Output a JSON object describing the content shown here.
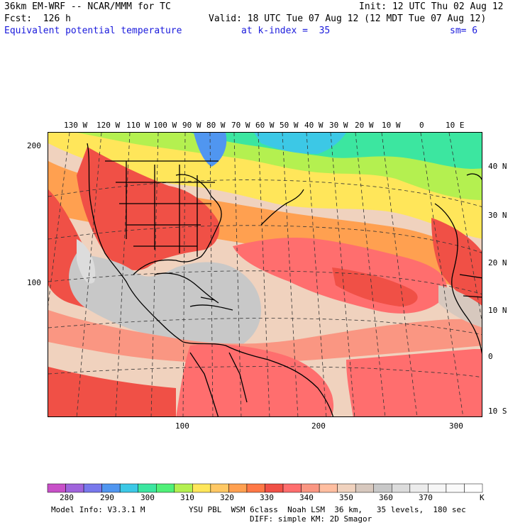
{
  "header": {
    "line1_left": "36km EM-WRF -- NCAR/MMM for TC",
    "line1_right": "Init: 12 UTC Thu 02 Aug 12",
    "line2_left": "Fcst:  126 h",
    "line2_right": "Valid: 18 UTC Tue 07 Aug 12 (12 MDT Tue 07 Aug 12)",
    "line3_field": "Equivalent potential temperature",
    "line3_level": "at k-index =  35",
    "line3_sm": "sm= 6"
  },
  "map": {
    "top_lon_labels": [
      "130 W",
      "120 W",
      "110 W",
      "100 W",
      "90 W",
      "80 W",
      "70 W",
      "60 W",
      "50 W",
      "40 W",
      "30 W",
      "20 W",
      "10 W",
      "0",
      "10 E"
    ],
    "right_lat_labels": [
      "40 N",
      "30 N",
      "20 N",
      "10 N",
      "0",
      "10 S"
    ],
    "left_grid_labels": [
      "200",
      "100"
    ],
    "bottom_grid_labels": [
      "100",
      "200",
      "300"
    ]
  },
  "colorbar": {
    "colors": [
      "#c850c8",
      "#a064dc",
      "#7878ec",
      "#5096f0",
      "#3cc8e6",
      "#3ce6a0",
      "#50f078",
      "#b4f050",
      "#ffe65a",
      "#ffc864",
      "#ffa050",
      "#ff7846",
      "#f05046",
      "#ff6e6e",
      "#fa9682",
      "#ffbea0",
      "#f0d2be",
      "#d7c8be",
      "#c8c8c8",
      "#dcdcdc",
      "#ececec",
      "#f6f6f6",
      "#fafafa",
      "#ffffff"
    ],
    "labels": [
      "280",
      "290",
      "300",
      "310",
      "320",
      "330",
      "340",
      "350",
      "360",
      "370"
    ],
    "unit": "K"
  },
  "footer": {
    "model_info": "Model Info: V3.3.1 M",
    "physics": "YSU PBL  WSM 6class  Noah LSM  36 km,   35 levels,  180 sec",
    "diffusion": "DIFF: simple KM: 2D Smagor"
  }
}
